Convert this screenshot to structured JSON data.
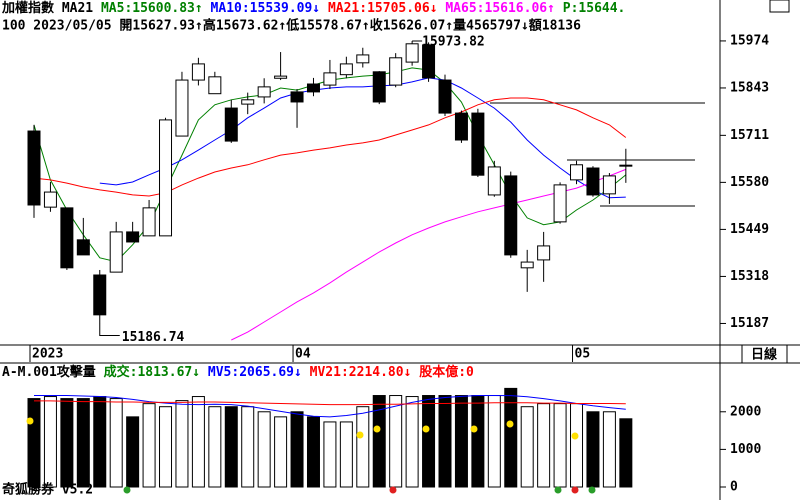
{
  "chart_data": [
    {
      "type": "candlestick",
      "title": "加權指數 MA21",
      "info": "100 2023/05/05 開15627.93↑高15673.62↑低15578.67↑收15626.07↑量4565797↓額18136",
      "notes": [
        "P:15644."
      ],
      "categories": [
        "2023",
        null,
        null,
        null,
        null,
        null,
        null,
        null,
        null,
        null,
        null,
        null,
        null,
        null,
        null,
        null,
        "04",
        null,
        null,
        null,
        null,
        null,
        null,
        null,
        null,
        null,
        null,
        null,
        null,
        null,
        null,
        null,
        null,
        "05",
        null,
        null,
        null
      ],
      "open": [
        15723,
        15511,
        15509,
        15420,
        15322,
        15330,
        15442,
        15431,
        15431,
        15709,
        15865,
        15827,
        15787,
        15798,
        15818,
        15870,
        15832,
        15854,
        15851,
        15880,
        15913,
        15888,
        15851,
        15915,
        15963,
        15865,
        15773,
        15773,
        15545,
        15598,
        15342,
        15364,
        15470,
        15587,
        15620,
        15548,
        15627.93
      ],
      "high": [
        15740,
        15581,
        15509,
        15481,
        15336,
        15470,
        15470,
        15531,
        15760,
        15888,
        15927,
        15888,
        15810,
        15830,
        15870,
        15943,
        15840,
        15871,
        15921,
        15930,
        15955,
        15890,
        15940,
        15973.82,
        15970,
        15880,
        15780,
        15785,
        15640,
        15610,
        15392,
        15442,
        15580,
        15640,
        15625,
        15606,
        15673.62
      ],
      "low": [
        15481,
        15498,
        15336,
        15378,
        15186.74,
        15330,
        15414,
        15431,
        15431,
        15709,
        15850,
        15827,
        15690,
        15770,
        15800,
        15865,
        15732,
        15820,
        15840,
        15870,
        15900,
        15798,
        15845,
        15905,
        15860,
        15765,
        15690,
        15595,
        15540,
        15370,
        15275,
        15303,
        15465,
        15575,
        15540,
        15520,
        15578.67
      ],
      "close": [
        15517,
        15553,
        15342,
        15378,
        15211,
        15442,
        15414,
        15509,
        15754,
        15865,
        15910,
        15874,
        15695,
        15810,
        15846,
        15876,
        15804,
        15832,
        15885,
        15910,
        15935,
        15804,
        15927,
        15966,
        15871,
        15773,
        15698,
        15600,
        15623,
        15378,
        15358,
        15403,
        15573,
        15629,
        15545,
        15598,
        15626.07
      ],
      "up_color": "#ffffff",
      "down_color": "#000000",
      "series": [
        {
          "name": "MA5:15600.83↑",
          "color": "#008000",
          "values": [
            15740,
            15587,
            15503,
            15434,
            15370,
            15359,
            15406,
            15462,
            15559,
            15656,
            15754,
            15796,
            15810,
            15818,
            15824,
            15843,
            15837,
            15851,
            15865,
            15871,
            15876,
            15879,
            15888,
            15899,
            15893,
            15857,
            15804,
            15712,
            15629,
            15545,
            15481,
            15462,
            15470,
            15503,
            15531,
            15564,
            15600.83
          ]
        },
        {
          "name": "MA10:15539.09↓",
          "color": "#0000ff",
          "values": [
            null,
            null,
            null,
            null,
            15578,
            15573,
            15581,
            15601,
            15620,
            15643,
            15670,
            15698,
            15726,
            15760,
            15787,
            15815,
            15829,
            15837,
            15843,
            15846,
            15846,
            15849,
            15851,
            15860,
            15871,
            15865,
            15843,
            15815,
            15787,
            15748,
            15698,
            15656,
            15620,
            15587,
            15559,
            15537,
            15539.09
          ]
        },
        {
          "name": "MA21:15705.06↓",
          "color": "#ff0000",
          "values": [
            15592,
            15587,
            15578,
            15567,
            15559,
            15553,
            15545,
            15542,
            15551,
            15573,
            15592,
            15609,
            15620,
            15629,
            15643,
            15656,
            15662,
            15670,
            15676,
            15684,
            15690,
            15698,
            15712,
            15726,
            15740,
            15760,
            15776,
            15796,
            15810,
            15815,
            15815,
            15810,
            15796,
            15782,
            15760,
            15740,
            15705.06
          ]
        },
        {
          "name": "MA65:15616.06↑",
          "color": "#ff00ff",
          "values": [
            null,
            null,
            null,
            null,
            null,
            null,
            null,
            null,
            null,
            null,
            null,
            null,
            15141,
            15163,
            15191,
            15219,
            15247,
            15272,
            15300,
            15330,
            15358,
            15386,
            15411,
            15434,
            15453,
            15470,
            15484,
            15498,
            15509,
            15520,
            15531,
            15542,
            15553,
            15564,
            15581,
            15598,
            15616.06
          ]
        }
      ],
      "annotations": [
        15973.82,
        15186.74
      ],
      "ylim": [
        15127,
        16088
      ],
      "yticks": [
        15974,
        15843,
        15711,
        15580,
        15449,
        15318,
        15187
      ]
    },
    {
      "type": "bar",
      "title": "A-M.001攻擊量",
      "notes": [
        "股本億:0"
      ],
      "series": [
        {
          "name": "成交:1813.67↓",
          "color": "#008000",
          "values": [
            2351,
            2405,
            2351,
            2351,
            2405,
            2351,
            1865,
            2216,
            2135,
            2297,
            2405,
            2135,
            2135,
            2135,
            2000,
            1865,
            2000,
            1865,
            1730,
            1730,
            2135,
            2432,
            2432,
            2405,
            2432,
            2432,
            2432,
            2432,
            2432,
            2622,
            2135,
            2216,
            2216,
            2216,
            2000,
            2000,
            1813.67
          ]
        },
        {
          "name": "MV5:2065.69↓",
          "color": "#0000ff",
          "values": [
            2432,
            2432,
            2432,
            2420,
            2405,
            2380,
            2330,
            2270,
            2230,
            2200,
            2190,
            2200,
            2190,
            2150,
            2080,
            2010,
            1940,
            1880,
            1865,
            1900,
            1960,
            2050,
            2150,
            2250,
            2330,
            2380,
            2410,
            2432,
            2432,
            2430,
            2400,
            2350,
            2290,
            2220,
            2160,
            2110,
            2065.69
          ]
        },
        {
          "name": "MV21:2214.80↓",
          "color": "#ff0000",
          "values": [
            2290,
            2290,
            2280,
            2270,
            2270,
            2260,
            2260,
            2250,
            2250,
            2250,
            2260,
            2260,
            2250,
            2240,
            2230,
            2220,
            2210,
            2200,
            2190,
            2190,
            2190,
            2200,
            2200,
            2210,
            2220,
            2220,
            2230,
            2230,
            2240,
            2240,
            2240,
            2230,
            2230,
            2220,
            2220,
            2220,
            2214.8
          ]
        }
      ],
      "ylim": [
        0,
        3297
      ],
      "yticks": [
        2000,
        1000,
        0
      ]
    }
  ],
  "period": "日線",
  "footer": "奇狐勝券 v5.2"
}
